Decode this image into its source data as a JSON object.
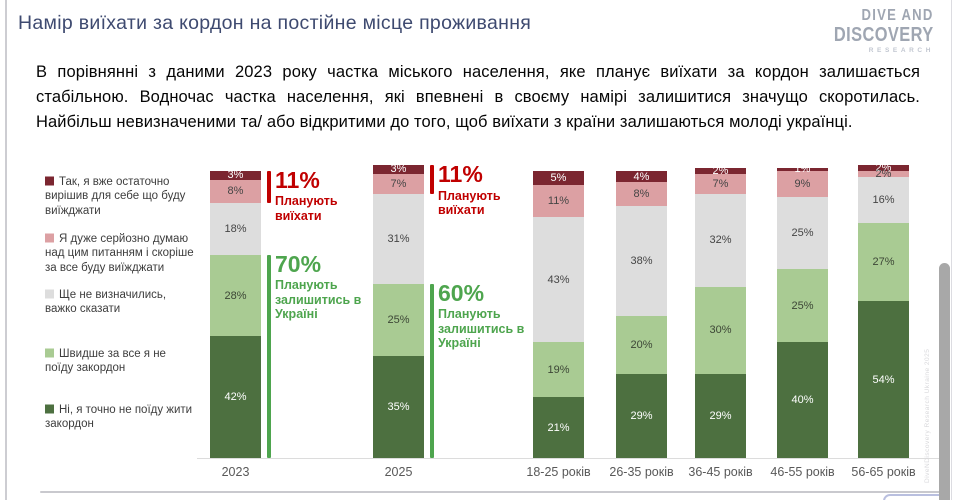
{
  "page": {
    "title": "Намір виїхати за кордон на постійне місце проживання",
    "logo": {
      "line1": "DIVE AND",
      "line2": "DISCOVERY",
      "line3": "RESEARCH"
    },
    "paragraph": "В порівнянні з даними 2023 року частка міського населення, яке планує виїхати за кордон залишається стабільною. Водночас частка населення, які впевнені в своєму намірі залишитися значущо скоротилась. Найбільш невизначеними та/ або відкритими до того, щоб виїхати з країни залишаються молоді українці.",
    "watermark": "DiveNDiscovery Research Ukraine 2025"
  },
  "colors": {
    "accent_leave": "#C00000",
    "accent_stay": "#4EA54E",
    "title": "#3E4A70",
    "logo": "#9FA6B2"
  },
  "chart_data": {
    "type": "bar",
    "stacked": true,
    "grid": false,
    "legend_position": "left",
    "ylim": [
      0,
      100
    ],
    "value_suffix": "%",
    "categories": [
      "2023",
      "2025",
      "18-25 років",
      "26-35 років",
      "36-45 років",
      "46-55 років",
      "56-65 років"
    ],
    "series": [
      {
        "name": "Так, я вже остаточно вирішив для себе що буду виїжджати",
        "color": "#7B2630",
        "label_color": "#ffffff",
        "values": [
          3,
          3,
          5,
          4,
          2,
          1,
          2
        ]
      },
      {
        "name": "Я дуже серйозно думаю над цим питанням і скоріше за все буду виїжджати",
        "color": "#DCA0A3",
        "label_color": "#454545",
        "values": [
          8,
          7,
          11,
          8,
          7,
          9,
          2
        ]
      },
      {
        "name": "Ще не визначились, важко сказати",
        "color": "#DDDDDD",
        "label_color": "#454545",
        "values": [
          18,
          31,
          43,
          38,
          32,
          25,
          16
        ]
      },
      {
        "name": "Швидше за все я не поїду закордон",
        "color": "#A9CB93",
        "label_color": "#3c4636",
        "values": [
          28,
          25,
          19,
          20,
          30,
          25,
          27
        ]
      },
      {
        "name": "Ні, я точно не поїду жити закордон",
        "color": "#4D7040",
        "label_color": "#ffffff",
        "values": [
          42,
          35,
          21,
          29,
          29,
          40,
          54
        ]
      }
    ],
    "annotations": [
      {
        "category": "2023",
        "leave": {
          "value": "11%",
          "label": "Планують виїхати"
        },
        "stay": {
          "value": "70%",
          "label": "Планують залишитись в Україні"
        }
      },
      {
        "category": "2025",
        "leave": {
          "value": "11%",
          "label": "Планують виїхати"
        },
        "stay": {
          "value": "60%",
          "label": "Планують залишитись в Україні"
        }
      }
    ]
  }
}
